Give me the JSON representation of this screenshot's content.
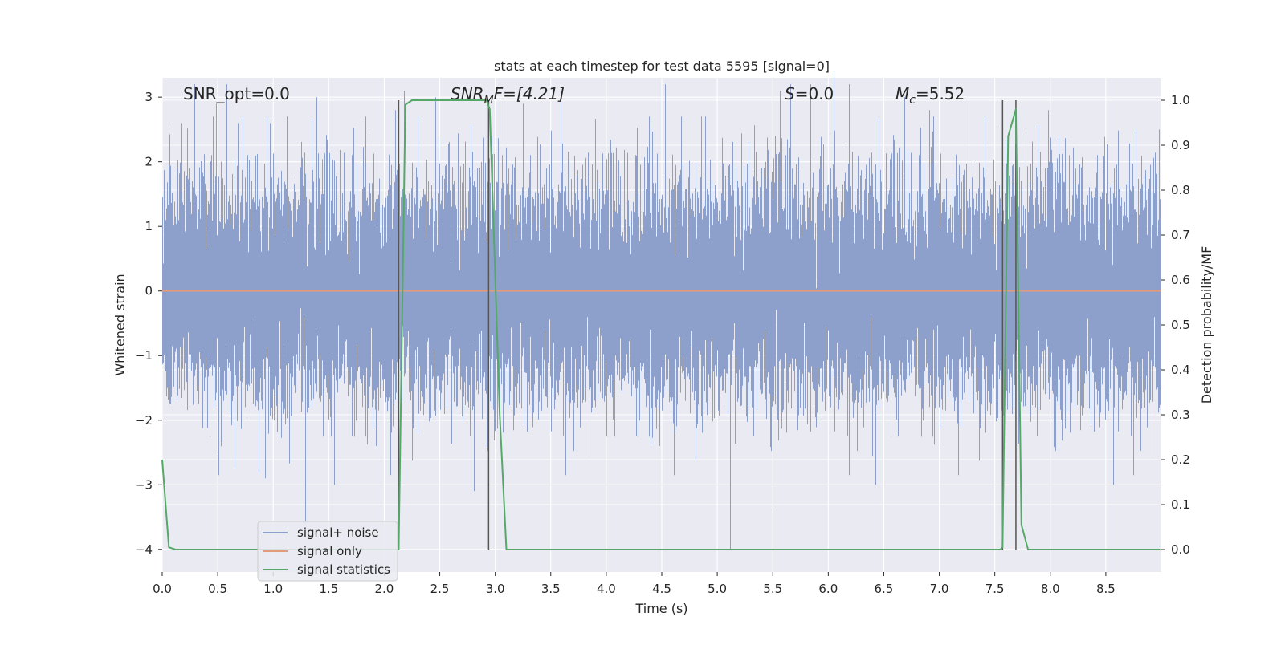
{
  "chart_data": {
    "type": "line",
    "title": "stats at each timestep for test data 5595 [signal=0]",
    "xlabel": "Time (s)",
    "ylabel": "Whitened strain",
    "y2label": "Detection probability/MF",
    "xlim": [
      0,
      9.0
    ],
    "ylim": [
      -4.35,
      3.3
    ],
    "y2lim": [
      -0.05,
      1.05
    ],
    "xticks": [
      0.0,
      0.5,
      1.0,
      1.5,
      2.0,
      2.5,
      3.0,
      3.5,
      4.0,
      4.5,
      5.0,
      5.5,
      6.0,
      6.5,
      7.0,
      7.5,
      8.0,
      8.5
    ],
    "xtick_labels": [
      "0.0",
      "0.5",
      "1.0",
      "1.5",
      "2.0",
      "2.5",
      "3.0",
      "3.5",
      "4.0",
      "4.5",
      "5.0",
      "5.5",
      "6.0",
      "6.5",
      "7.0",
      "7.5",
      "8.0",
      "8.5"
    ],
    "yticks": [
      -4,
      -3,
      -2,
      -1,
      0,
      1,
      2,
      3
    ],
    "ytick_labels": [
      "−4",
      "−3",
      "−2",
      "−1",
      "0",
      "1",
      "2",
      "3"
    ],
    "y2ticks": [
      0.0,
      0.1,
      0.2,
      0.3,
      0.4,
      0.5,
      0.6,
      0.7,
      0.8,
      0.9,
      1.0
    ],
    "y2tick_labels": [
      "0.0",
      "0.1",
      "0.2",
      "0.3",
      "0.4",
      "0.5",
      "0.6",
      "0.7",
      "0.8",
      "0.9",
      "1.0"
    ],
    "grid": true,
    "legend_position": "lower-left",
    "annotations": {
      "snr_opt": "SNR_opt=0.0",
      "snr_mf_sym": "SNR",
      "snr_mf_sub": "M",
      "snr_mf_rest": "F=[4.21]",
      "s_sym": "S",
      "s_rest": "=0.0",
      "mc_sym": "M",
      "mc_sub": "c",
      "mc_rest": "=5.52"
    },
    "vertical_lines_x": [
      2.13,
      2.94,
      7.57,
      7.69
    ],
    "series": [
      {
        "name": "signal+ noise",
        "color": "#8da0cb",
        "axis": "left",
        "noise_model": {
          "sample_rate_hz": 2048,
          "std": 1.0,
          "duration_s": 9.0
        },
        "spike_peaks": [
          [
            0.1,
            2.6
          ],
          [
            0.17,
            2.6
          ],
          [
            0.29,
            3.2
          ],
          [
            0.49,
            2.9
          ],
          [
            0.58,
            3.2
          ],
          [
            0.68,
            2.6
          ],
          [
            0.97,
            2.6
          ],
          [
            1.29,
            -3.6
          ],
          [
            1.39,
            3.0
          ],
          [
            2.1,
            2.8
          ],
          [
            2.18,
            3.1
          ],
          [
            2.46,
            3.0
          ],
          [
            3.08,
            3.2
          ],
          [
            3.25,
            2.9
          ],
          [
            3.59,
            3.0
          ],
          [
            4.53,
            3.2
          ],
          [
            5.12,
            -4.0
          ],
          [
            5.57,
            3.1
          ],
          [
            5.66,
            3.2
          ],
          [
            5.84,
            3.2
          ],
          [
            6.05,
            3.4
          ],
          [
            6.19,
            3.2
          ],
          [
            6.69,
            3.0
          ],
          [
            6.91,
            2.8
          ],
          [
            7.23,
            3.0
          ],
          [
            7.52,
            2.6
          ],
          [
            7.98,
            2.8
          ],
          [
            8.77,
            2.5
          ],
          [
            8.98,
            2.5
          ],
          [
            5.54,
            -3.4
          ],
          [
            6.43,
            -3.0
          ],
          [
            8.57,
            -3.0
          ],
          [
            2.81,
            -3.1
          ],
          [
            1.55,
            -3.0
          ],
          [
            0.93,
            -2.9
          ]
        ]
      },
      {
        "name": "signal only",
        "color": "#e39b7b",
        "axis": "left",
        "x": [
          0.0,
          9.0
        ],
        "y": [
          0.0,
          0.0
        ]
      },
      {
        "name": "signal statistics",
        "color": "#55a868",
        "axis": "right",
        "x": [
          0.0,
          0.06,
          0.12,
          2.1,
          2.13,
          2.19,
          2.25,
          2.92,
          2.95,
          3.04,
          3.1,
          7.55,
          7.57,
          7.62,
          7.69,
          7.74,
          7.8,
          8.99
        ],
        "y": [
          0.2,
          0.005,
          0.0,
          0.0,
          0.0,
          0.99,
          1.0,
          1.0,
          0.98,
          0.3,
          0.0,
          0.0,
          0.005,
          0.92,
          0.98,
          0.055,
          0.0,
          0.0
        ]
      }
    ]
  }
}
